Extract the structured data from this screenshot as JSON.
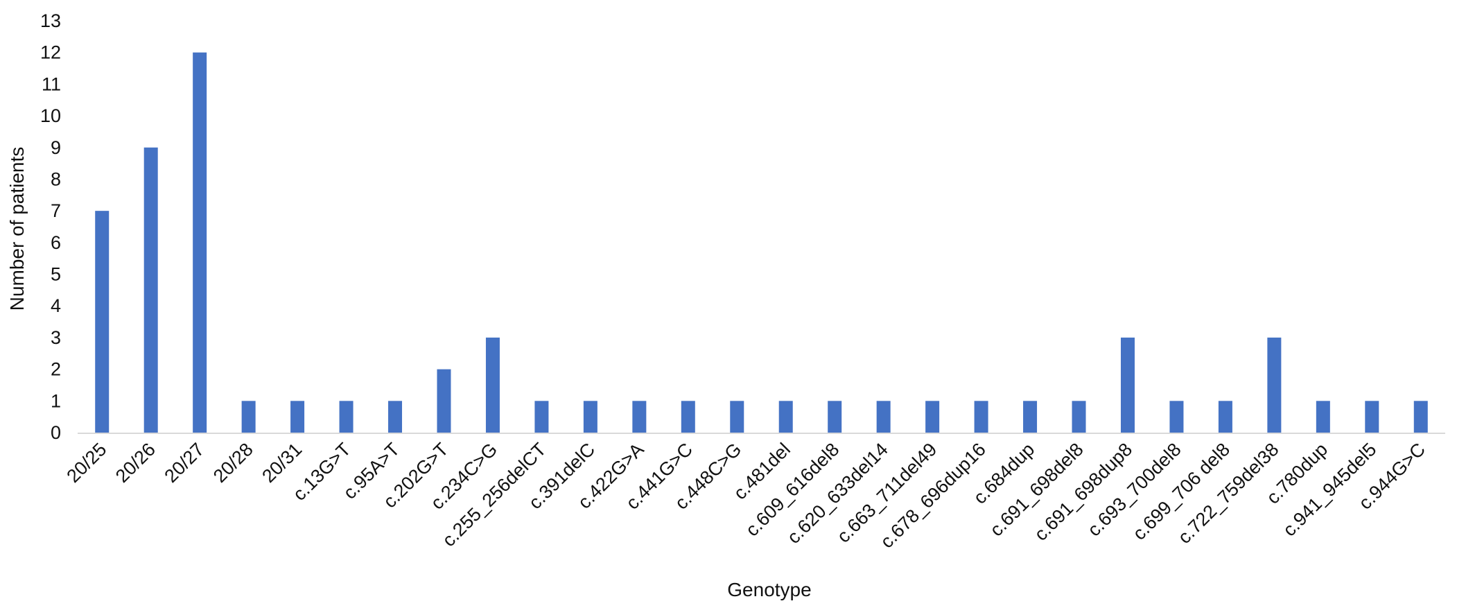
{
  "colors": {
    "bar": "#4472C4",
    "axis": "#d9d9d9",
    "text": "#111111",
    "background": "#ffffff"
  },
  "chart_data": {
    "type": "bar",
    "title": "",
    "xlabel": "Genotype",
    "ylabel": "Number of patients",
    "ylim": [
      0,
      13
    ],
    "yticks": [
      "0",
      "1",
      "2",
      "3",
      "4",
      "5",
      "6",
      "7",
      "8",
      "9",
      "10",
      "11",
      "12",
      "13"
    ],
    "grid": false,
    "legend": "none",
    "categories": [
      "20/25",
      "20/26",
      "20/27",
      "20/28",
      "20/31",
      "c.13G>T",
      "c.95A>T",
      "c.202G>T",
      "c.234C>G",
      "c.255_256delCT",
      "c.391delC",
      "c.422G>A",
      "c.441G>C",
      "c.448C>G",
      "c.481del",
      "c.609_616del8",
      "c.620_633del14",
      "c.663_711del49",
      "c.678_696dup16",
      "c.684dup",
      "c.691_698del8",
      "c.691_698dup8",
      "c.693_700del8",
      "c.699_706 del8",
      "c.722_759del38",
      "c.780dup",
      "c.941_945del5",
      "c.944G>C"
    ],
    "values": [
      7,
      9,
      12,
      1,
      1,
      1,
      1,
      2,
      3,
      1,
      1,
      1,
      1,
      1,
      1,
      1,
      1,
      1,
      1,
      1,
      1,
      3,
      1,
      1,
      3,
      1,
      1,
      1
    ]
  }
}
